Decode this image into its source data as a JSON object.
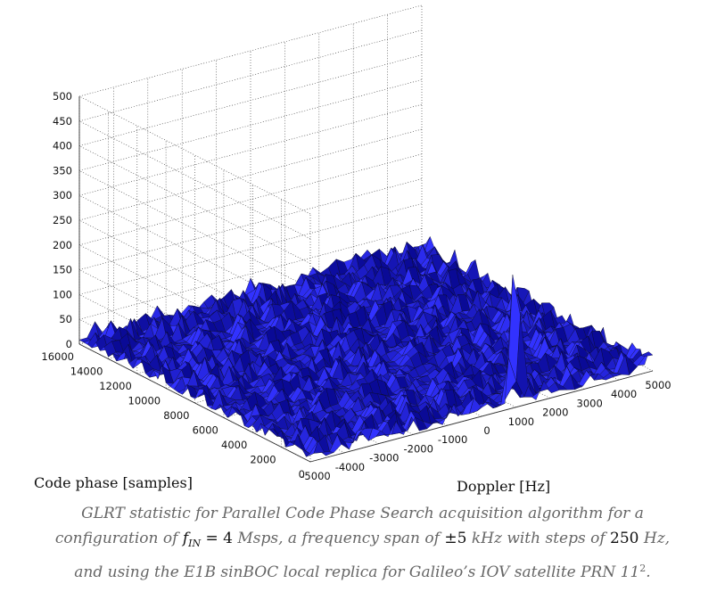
{
  "chart_data": {
    "type": "surface3d",
    "title": "",
    "xlabel": "Doppler [Hz]",
    "ylabel": "Code phase [samples]",
    "zlabel": "",
    "x_ticks": [
      "-5000",
      "-4000",
      "-3000",
      "-2000",
      "-1000",
      "0",
      "1000",
      "2000",
      "3000",
      "4000",
      "5000"
    ],
    "y_ticks": [
      "0",
      "2000",
      "4000",
      "6000",
      "8000",
      "10000",
      "12000",
      "14000",
      "16000"
    ],
    "z_ticks": [
      "0",
      "50",
      "100",
      "150",
      "200",
      "250",
      "300",
      "350",
      "400",
      "450",
      "500"
    ],
    "xlim": [
      -5000,
      5000
    ],
    "ylim": [
      0,
      16000
    ],
    "zlim": [
      0,
      500
    ],
    "grid": true,
    "noise_floor_max": 40,
    "peak": {
      "doppler": 1000,
      "code_phase": 0,
      "value": 355
    },
    "surface_color": "#1a1ad8",
    "edge_color": "#0a0a22",
    "peak_color": "#22aa55"
  },
  "caption": {
    "line1": "GLRT statistic for Parallel Code Phase Search acquisition algorithm for a",
    "line2_pre": "configuration of ",
    "line2_var": "f",
    "line2_sub": "IN",
    "line2_eq": " = 4",
    "line2_unit": " Msps, a frequency span of ",
    "line2_pm": "±5",
    "line2_mid": " kHz with steps of ",
    "line2_step": "250",
    "line2_end": " Hz,",
    "line3_text": "and using the E1B sinBOC local replica for Galileo’s IOV satellite PRN 11",
    "line3_sup": "2",
    "line3_end": "."
  }
}
